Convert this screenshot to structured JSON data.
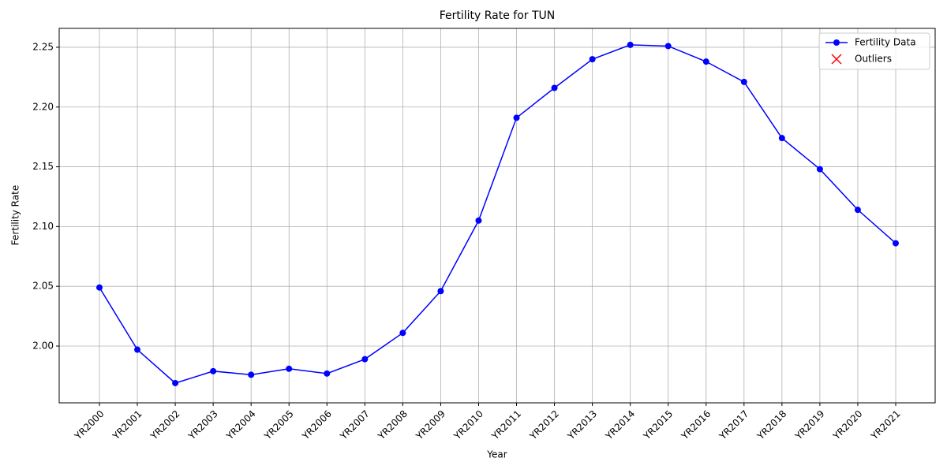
{
  "chart_data": {
    "type": "line",
    "title": "Fertility Rate for TUN",
    "x_label": "Year",
    "y_label": "Fertility Rate",
    "categories": [
      "YR2000",
      "YR2001",
      "YR2002",
      "YR2003",
      "YR2004",
      "YR2005",
      "YR2006",
      "YR2007",
      "YR2008",
      "YR2009",
      "YR2010",
      "YR2011",
      "YR2012",
      "YR2013",
      "YR2014",
      "YR2015",
      "YR2016",
      "YR2017",
      "YR2018",
      "YR2019",
      "YR2020",
      "YR2021"
    ],
    "series": [
      {
        "name": "Fertility Data",
        "color": "#0000ff",
        "values": [
          2.049,
          1.997,
          1.969,
          1.979,
          1.976,
          1.981,
          1.977,
          1.989,
          2.011,
          2.046,
          2.105,
          2.191,
          2.216,
          2.24,
          2.252,
          2.251,
          2.238,
          2.221,
          2.174,
          2.148,
          2.114,
          2.086
        ]
      }
    ],
    "outliers": {
      "name": "Outliers",
      "color": "#ff0000",
      "values": []
    },
    "ylim": [
      1.9525,
      2.2658
    ],
    "yticks": [
      {
        "value": 2.0,
        "label": "2.00"
      },
      2.05,
      {
        "value": 2.1,
        "label": "2.10"
      },
      2.15,
      {
        "value": 2.2,
        "label": "2.20"
      },
      2.25
    ],
    "grid": true,
    "legend": "upper right"
  }
}
